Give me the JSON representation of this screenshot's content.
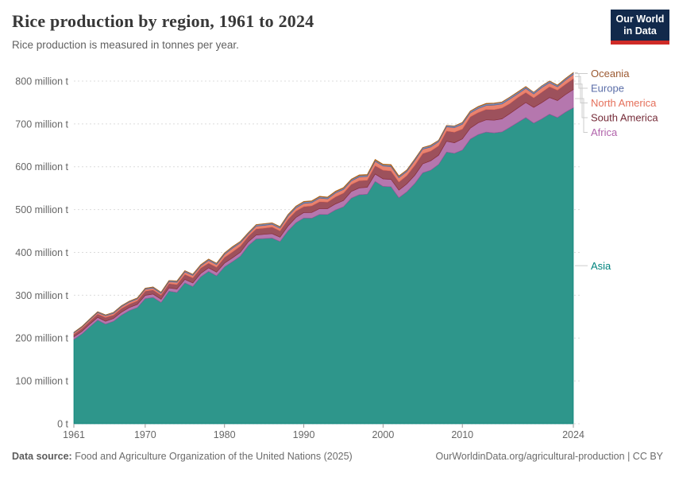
{
  "header": {
    "title": "Rice production by region, 1961 to 2024",
    "subtitle": "Rice production is measured in tonnes per year.",
    "logo": {
      "line1": "Our World",
      "line2": "in Data",
      "bg_color": "#12294B",
      "bar_color": "#CF2B27"
    }
  },
  "footer": {
    "datasource_label": "Data source:",
    "datasource_text": " Food and Agriculture Organization of the United Nations (2025)",
    "link_text": "OurWorldinData.org/agricultural-production",
    "license_text": " | CC BY"
  },
  "chart_data": {
    "type": "area",
    "stacked": true,
    "title": "Rice production by region, 1961 to 2024",
    "subtitle": "Rice production is measured in tonnes per year.",
    "unit": "million tonnes per year",
    "grid": true,
    "grid_color": "#dcdcdc",
    "axis_text_color": "#666666",
    "tick_color": "#999999",
    "connector_color": "#cccccc",
    "legend_position": "right",
    "legend_order": [
      "Oceania",
      "Europe",
      "North America",
      "South America",
      "Africa",
      "Asia"
    ],
    "xlim": [
      1961,
      2024
    ],
    "ylim": [
      0,
      800
    ],
    "x_ticks": [
      1961,
      1970,
      1980,
      1990,
      2000,
      2010,
      2024
    ],
    "y_ticks": [
      {
        "value": 0,
        "label": "0 t"
      },
      {
        "value": 100,
        "label": "100 million t"
      },
      {
        "value": 200,
        "label": "200 million t"
      },
      {
        "value": 300,
        "label": "300 million t"
      },
      {
        "value": 400,
        "label": "400 million t"
      },
      {
        "value": 500,
        "label": "500 million t"
      },
      {
        "value": 600,
        "label": "600 million t"
      },
      {
        "value": 700,
        "label": "700 million t"
      },
      {
        "value": 800,
        "label": "800 million t"
      }
    ],
    "x": [
      1961,
      1962,
      1963,
      1964,
      1965,
      1966,
      1967,
      1968,
      1969,
      1970,
      1971,
      1972,
      1973,
      1974,
      1975,
      1976,
      1977,
      1978,
      1979,
      1980,
      1981,
      1982,
      1983,
      1984,
      1985,
      1986,
      1987,
      1988,
      1989,
      1990,
      1991,
      1992,
      1993,
      1994,
      1995,
      1996,
      1997,
      1998,
      1999,
      2000,
      2001,
      2002,
      2003,
      2004,
      2005,
      2006,
      2007,
      2008,
      2009,
      2010,
      2011,
      2012,
      2013,
      2014,
      2015,
      2016,
      2017,
      2018,
      2019,
      2020,
      2021,
      2022,
      2023,
      2024
    ],
    "series": [
      {
        "name": "Asia",
        "fill": "#2E968B",
        "line": "#007F76",
        "label_color": "#00847E",
        "values": [
          197.1,
          209.5,
          226.2,
          242.0,
          232.8,
          239.2,
          253.6,
          264.4,
          271.4,
          292.4,
          295.2,
          283.3,
          309.6,
          306.6,
          329.0,
          320.6,
          343.0,
          355.8,
          345.5,
          366.4,
          378.5,
          391.4,
          416.0,
          431.6,
          432.5,
          433.6,
          425.7,
          450.3,
          469.5,
          480.4,
          480.0,
          489.0,
          488.6,
          499.3,
          506.6,
          526.8,
          534.7,
          535.8,
          565.9,
          554.3,
          553.5,
          527.9,
          541.7,
          561.0,
          586.0,
          592.0,
          605.5,
          634.5,
          631.4,
          639.1,
          664.7,
          675.2,
          681.1,
          679.1,
          681.3,
          692.2,
          703.7,
          714.9,
          702.0,
          711.6,
          723.0,
          715.0,
          727.5,
          738.0
        ]
      },
      {
        "name": "Africa",
        "fill": "#B577AE",
        "line": "#A2559C",
        "label_color": "#B163AB",
        "values": [
          5.7,
          5.9,
          6.1,
          6.3,
          6.5,
          6.6,
          6.9,
          7.0,
          7.2,
          7.4,
          7.6,
          7.4,
          7.6,
          8.0,
          8.0,
          8.1,
          7.9,
          8.2,
          8.4,
          8.6,
          8.9,
          8.9,
          8.8,
          9.1,
          9.8,
          10.2,
          10.0,
          11.2,
          12.0,
          12.6,
          13.2,
          13.5,
          13.6,
          14.0,
          14.6,
          15.5,
          15.9,
          16.2,
          17.2,
          17.4,
          17.0,
          17.6,
          18.3,
          19.0,
          20.7,
          21.8,
          21.5,
          25.0,
          24.5,
          26.0,
          25.5,
          27.5,
          28.5,
          29.5,
          30.5,
          32.0,
          33.5,
          35.0,
          36.5,
          38.0,
          38.5,
          39.5,
          41.0,
          42.5
        ]
      },
      {
        "name": "South America",
        "fill": "#9D515C",
        "line": "#883039",
        "label_color": "#752B38",
        "values": [
          6.1,
          6.7,
          7.0,
          7.8,
          8.9,
          8.0,
          8.6,
          8.1,
          8.4,
          10.0,
          9.6,
          9.5,
          10.0,
          10.4,
          11.5,
          12.0,
          12.5,
          11.0,
          11.5,
          13.4,
          13.8,
          14.5,
          13.0,
          14.2,
          14.5,
          15.5,
          14.8,
          15.5,
          15.0,
          14.0,
          15.5,
          16.0,
          15.5,
          16.5,
          17.5,
          16.5,
          17.0,
          16.5,
          19.5,
          20.5,
          19.8,
          19.0,
          19.5,
          23.5,
          24.0,
          23.0,
          22.0,
          24.0,
          25.0,
          23.0,
          26.5,
          24.0,
          24.5,
          25.0,
          25.5,
          23.5,
          24.5,
          23.5,
          22.5,
          24.5,
          25.5,
          24.5,
          24.0,
          25.0
        ]
      },
      {
        "name": "North America",
        "fill": "#E9836F",
        "line": "#E56E5A",
        "label_color": "#E5705B",
        "values": [
          2.8,
          3.0,
          3.2,
          3.4,
          3.6,
          3.9,
          4.1,
          4.4,
          4.2,
          4.0,
          4.2,
          4.1,
          4.5,
          5.3,
          6.0,
          5.5,
          4.9,
          6.3,
          6.2,
          7.0,
          8.7,
          7.5,
          5.0,
          6.5,
          6.4,
          6.2,
          6.0,
          7.5,
          7.3,
          7.4,
          7.5,
          8.4,
          7.4,
          9.0,
          8.3,
          8.2,
          8.7,
          8.9,
          9.9,
          9.6,
          10.0,
          9.9,
          9.5,
          10.9,
          10.5,
          9.3,
          9.4,
          9.7,
          10.5,
          11.3,
          8.9,
          9.5,
          9.0,
          10.5,
          9.2,
          10.7,
          8.7,
          9.5,
          8.9,
          10.7,
          9.1,
          7.7,
          9.5,
          10.1
        ]
      },
      {
        "name": "Europe",
        "fill": "#7E8CB9",
        "line": "#4C6A9C",
        "label_color": "#5B6EA8",
        "values": [
          1.7,
          1.8,
          1.9,
          2.0,
          2.1,
          2.1,
          2.2,
          2.3,
          2.3,
          2.4,
          2.5,
          2.5,
          2.6,
          2.7,
          2.7,
          2.6,
          2.6,
          2.8,
          2.8,
          3.0,
          3.0,
          3.1,
          3.0,
          3.2,
          3.3,
          3.2,
          3.3,
          3.4,
          3.5,
          3.6,
          3.4,
          3.3,
          3.2,
          3.1,
          3.2,
          3.2,
          3.3,
          3.2,
          3.2,
          3.2,
          3.1,
          3.2,
          3.2,
          3.4,
          3.4,
          3.3,
          3.4,
          3.4,
          3.7,
          3.8,
          3.9,
          3.9,
          3.8,
          3.9,
          4.1,
          4.1,
          4.0,
          3.9,
          4.0,
          4.0,
          3.9,
          3.5,
          3.6,
          3.8
        ]
      },
      {
        "name": "Oceania",
        "fill": "#C77E47",
        "line": "#B16214",
        "label_color": "#9C5A32",
        "values": [
          0.14,
          0.15,
          0.16,
          0.17,
          0.19,
          0.2,
          0.23,
          0.25,
          0.25,
          0.27,
          0.28,
          0.3,
          0.26,
          0.33,
          0.37,
          0.4,
          0.45,
          0.48,
          0.51,
          0.55,
          0.62,
          0.66,
          0.54,
          0.63,
          0.68,
          0.6,
          0.56,
          0.73,
          0.77,
          0.92,
          0.78,
          1.06,
          1.07,
          1.13,
          1.18,
          0.97,
          1.39,
          1.35,
          1.39,
          1.1,
          1.76,
          1.3,
          0.44,
          0.55,
          0.34,
          1.01,
          0.17,
          0.02,
          0.07,
          0.21,
          0.73,
          0.92,
          1.16,
          0.83,
          0.7,
          0.28,
          0.81,
          0.64,
          0.06,
          0.06,
          0.42,
          0.69,
          0.51,
          0.6
        ]
      }
    ]
  }
}
